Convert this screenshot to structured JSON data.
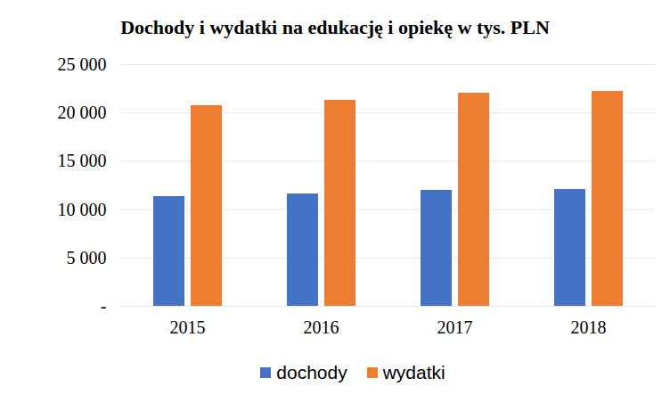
{
  "chart_data": {
    "type": "bar",
    "title": "Dochody i wydatki na edukację i opiekę w tys. PLN",
    "categories": [
      "2015",
      "2016",
      "2017",
      "2018"
    ],
    "series": [
      {
        "name": "dochody",
        "color": "#4472c4",
        "values": [
          11350,
          11620,
          12000,
          12080
        ]
      },
      {
        "name": "wydatki",
        "color": "#ed7d31",
        "values": [
          20760,
          21310,
          22050,
          22230
        ]
      }
    ],
    "ylim": [
      0,
      25000
    ],
    "yticks": [
      {
        "value": 0,
        "label": "-"
      },
      {
        "value": 5000,
        "label": "5 000"
      },
      {
        "value": 10000,
        "label": "10 000"
      },
      {
        "value": 15000,
        "label": "15 000"
      },
      {
        "value": 20000,
        "label": "20 000"
      },
      {
        "value": 25000,
        "label": "25 000"
      }
    ],
    "grid": true,
    "legend": "bottom"
  }
}
